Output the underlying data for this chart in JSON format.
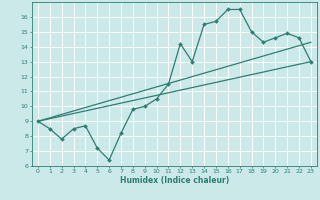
{
  "title": "",
  "xlabel": "Humidex (Indice chaleur)",
  "bg_color": "#cce9e9",
  "grid_color": "#ffffff",
  "line_color": "#2e7d72",
  "xlim": [
    -0.5,
    23.5
  ],
  "ylim": [
    6,
    17
  ],
  "xticks": [
    0,
    1,
    2,
    3,
    4,
    5,
    6,
    7,
    8,
    9,
    10,
    11,
    12,
    13,
    14,
    15,
    16,
    17,
    18,
    19,
    20,
    21,
    22,
    23
  ],
  "yticks": [
    6,
    7,
    8,
    9,
    10,
    11,
    12,
    13,
    14,
    15,
    16
  ],
  "series1_x": [
    0,
    1,
    2,
    3,
    4,
    5,
    6,
    7,
    8,
    9,
    10,
    11,
    12,
    13,
    14,
    15,
    16,
    17,
    18,
    19,
    20,
    21,
    22,
    23
  ],
  "series1_y": [
    9.0,
    8.5,
    7.8,
    8.5,
    8.7,
    7.2,
    6.4,
    8.2,
    9.8,
    10.0,
    10.5,
    11.5,
    14.2,
    13.0,
    15.5,
    15.7,
    16.5,
    16.5,
    15.0,
    14.3,
    14.6,
    14.9,
    14.6,
    13.0
  ],
  "series2_x": [
    0,
    23
  ],
  "series2_y": [
    9.0,
    13.0
  ],
  "series3_x": [
    0,
    23
  ],
  "series3_y": [
    9.0,
    14.3
  ],
  "tick_fontsize": 4.5,
  "xlabel_fontsize": 5.5
}
